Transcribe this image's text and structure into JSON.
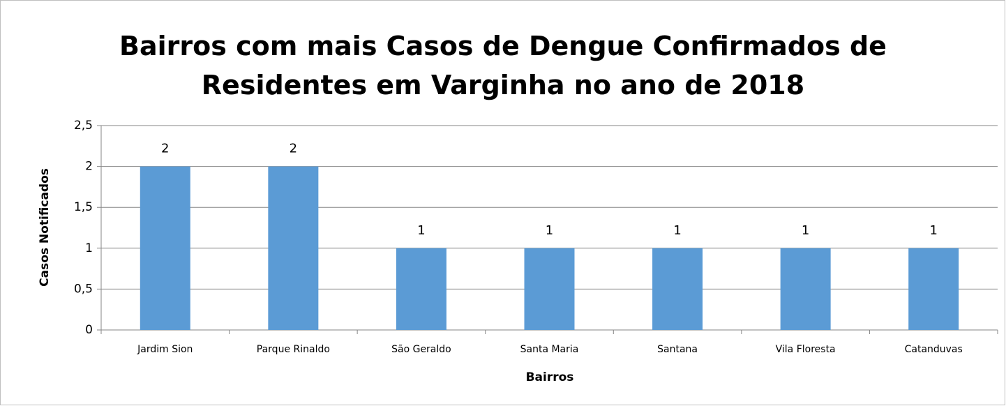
{
  "chart_data": {
    "type": "bar",
    "title": "Bairros com mais Casos de Dengue Confirmados de Residentes em Varginha no ano de 2018",
    "x_label": "Bairros",
    "y_label": "Casos Notificados",
    "categories": [
      "Jardim Sion",
      "Parque Rinaldo",
      "São Geraldo",
      "Santa Maria",
      "Santana",
      "Vila Floresta",
      "Catanduvas"
    ],
    "values": [
      2,
      2,
      1,
      1,
      1,
      1,
      1
    ],
    "color": "#5b9bd5",
    "ylim": [
      0,
      2.5
    ],
    "yticks": [
      0,
      {
        "value": 0.5,
        "label": "0,5"
      },
      1,
      {
        "value": 1.5,
        "label": "1,5"
      },
      2,
      {
        "value": 2.5,
        "label": "2,5"
      }
    ],
    "grid": true,
    "data_labels": true
  }
}
